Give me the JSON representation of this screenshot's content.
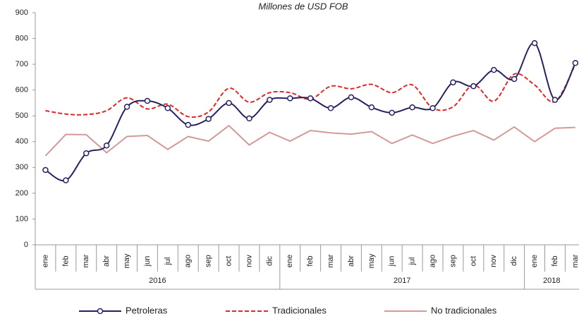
{
  "chart_data": {
    "type": "line",
    "title": "Millones de USD FOB",
    "category_groups": [
      {
        "label": "2016",
        "categories": [
          "ene",
          "feb",
          "mar",
          "abr",
          "may",
          "jun",
          "jul",
          "ago",
          "sep",
          "oct",
          "nov",
          "dic"
        ]
      },
      {
        "label": "2017",
        "categories": [
          "ene",
          "feb",
          "mar",
          "abr",
          "may",
          "jun",
          "jul",
          "ago",
          "sep",
          "oct",
          "nov",
          "dic"
        ]
      },
      {
        "label": "2018",
        "categories": [
          "ene",
          "feb",
          "mar"
        ]
      }
    ],
    "series": [
      {
        "name": "Petroleras",
        "color": "#262262",
        "smooth": true,
        "markers": true,
        "dashed": false,
        "values": [
          290,
          250,
          355,
          385,
          535,
          558,
          530,
          465,
          488,
          550,
          490,
          562,
          568,
          568,
          530,
          572,
          533,
          512,
          533,
          530,
          630,
          615,
          678,
          643,
          782,
          562,
          705
        ]
      },
      {
        "name": "Tradicionales",
        "color": "#e32626",
        "smooth": true,
        "markers": false,
        "dashed": true,
        "values": [
          520,
          507,
          505,
          520,
          570,
          527,
          545,
          497,
          515,
          607,
          553,
          590,
          590,
          565,
          615,
          605,
          622,
          590,
          620,
          530,
          535,
          620,
          557,
          662,
          620,
          555,
          700
        ]
      },
      {
        "name": "No tradicionales",
        "color": "#d49a9a",
        "smooth": false,
        "markers": false,
        "dashed": false,
        "values": [
          345,
          428,
          427,
          357,
          420,
          424,
          370,
          420,
          402,
          462,
          387,
          436,
          402,
          443,
          434,
          429,
          439,
          393,
          426,
          393,
          421,
          443,
          406,
          457,
          400,
          452,
          455
        ]
      }
    ],
    "ylim": [
      0,
      900
    ],
    "yticks": [
      0,
      100,
      200,
      300,
      400,
      500,
      600,
      700,
      800,
      900
    ],
    "grid": false,
    "legend": "bottom"
  }
}
